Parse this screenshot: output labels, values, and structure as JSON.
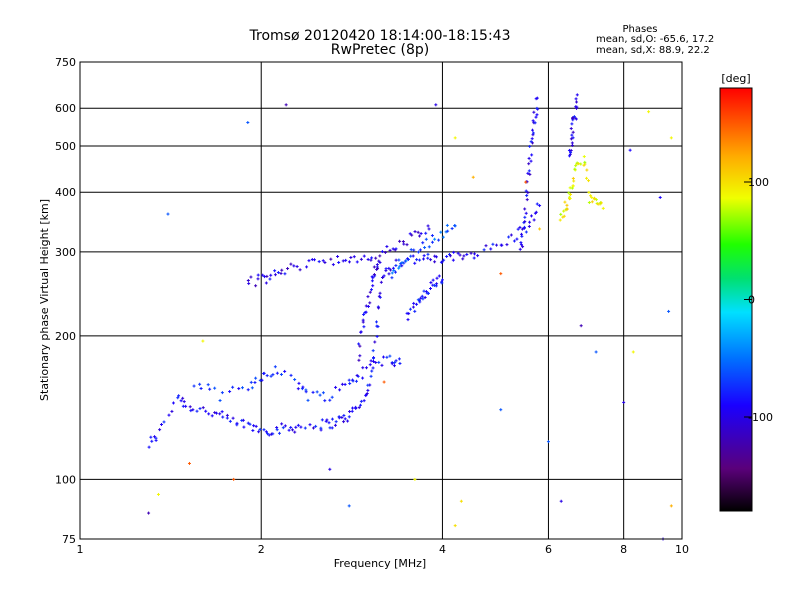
{
  "chart_data": {
    "type": "scatter",
    "title": "Tromsø 20120420 18:14:00-18:15:43",
    "subtitle": "RwPretec (8p)",
    "xlabel": "Frequency [MHz]",
    "ylabel": "Stationary phase Virtual Height [km]",
    "x_scale": "log",
    "y_scale": "log",
    "xlim": [
      1,
      10
    ],
    "ylim": [
      75,
      750
    ],
    "x_ticks": [
      "1",
      "2",
      "4",
      "6",
      "8",
      "10"
    ],
    "y_ticks": [
      "75",
      "100",
      "200",
      "300",
      "400",
      "500",
      "600",
      "750"
    ],
    "grid": true,
    "phase_stats": {
      "heading": "Phases",
      "line1": "mean, sd,O: -65.6, 17.2",
      "line2": "mean, sd,X:  88.9, 22.2"
    },
    "colorbar": {
      "label": "[deg]",
      "ticks": [
        "100",
        "0",
        "-100"
      ],
      "tick_values": [
        100,
        0,
        -100
      ],
      "range": [
        -180,
        180
      ],
      "colormap": "rainbow (black-purple-blue-cyan-green-yellow-red)"
    },
    "traces": [
      {
        "name": "",
        "phase": -90,
        "points": [
          [
            1.3,
            118
          ],
          [
            1.35,
            125
          ],
          [
            1.45,
            150
          ],
          [
            1.5,
            143
          ],
          [
            1.6,
            140
          ],
          [
            1.7,
            136
          ],
          [
            1.8,
            132
          ],
          [
            1.9,
            130
          ],
          [
            2.0,
            127
          ],
          [
            2.1,
            127
          ],
          [
            2.2,
            128
          ],
          [
            2.3,
            129
          ],
          [
            2.5,
            130
          ],
          [
            2.6,
            131
          ],
          [
            2.7,
            133
          ],
          [
            2.8,
            136
          ],
          [
            2.9,
            142
          ],
          [
            3.0,
            152
          ],
          [
            3.05,
            170
          ],
          [
            3.1,
            200
          ],
          [
            3.15,
            240
          ],
          [
            3.2,
            270
          ],
          [
            3.3,
            283
          ],
          [
            3.5,
            288
          ],
          [
            3.7,
            290
          ],
          [
            3.9,
            289
          ],
          [
            4.1,
            290
          ],
          [
            4.3,
            295
          ],
          [
            4.6,
            300
          ],
          [
            5.0,
            310
          ],
          [
            5.3,
            325
          ],
          [
            5.6,
            345
          ],
          [
            5.8,
            375
          ]
        ]
      },
      {
        "name": "",
        "phase": -80,
        "points": [
          [
            1.55,
            160
          ],
          [
            1.7,
            150
          ],
          [
            1.9,
            155
          ],
          [
            2.0,
            165
          ],
          [
            2.1,
            170
          ],
          [
            2.3,
            160
          ],
          [
            2.4,
            150
          ],
          [
            2.6,
            150
          ],
          [
            2.8,
            160
          ],
          [
            2.9,
            165
          ],
          [
            3.1,
            175
          ],
          [
            3.3,
            180
          ],
          [
            3.4,
            175
          ]
        ]
      },
      {
        "name": "",
        "phase": -100,
        "points": [
          [
            2.9,
            180
          ],
          [
            2.95,
            210
          ],
          [
            3.0,
            230
          ],
          [
            3.05,
            255
          ],
          [
            3.1,
            275
          ],
          [
            3.15,
            285
          ]
        ]
      },
      {
        "name": "",
        "phase": -100,
        "points": [
          [
            1.9,
            260
          ],
          [
            2.0,
            262
          ],
          [
            2.1,
            268
          ],
          [
            2.2,
            275
          ],
          [
            2.4,
            285
          ],
          [
            2.6,
            290
          ],
          [
            2.8,
            285
          ],
          [
            3.0,
            290
          ],
          [
            3.2,
            300
          ],
          [
            3.4,
            310
          ],
          [
            3.6,
            325
          ],
          [
            3.8,
            335
          ]
        ]
      },
      {
        "name": "",
        "phase": -95,
        "points": [
          [
            5.4,
            300
          ],
          [
            5.45,
            330
          ],
          [
            5.5,
            370
          ],
          [
            5.55,
            420
          ],
          [
            5.6,
            480
          ],
          [
            5.65,
            530
          ],
          [
            5.7,
            580
          ],
          [
            5.75,
            630
          ]
        ]
      },
      {
        "name": "",
        "phase": -95,
        "points": [
          [
            6.5,
            470
          ],
          [
            6.55,
            510
          ],
          [
            6.6,
            550
          ],
          [
            6.65,
            590
          ],
          [
            6.7,
            640
          ]
        ]
      },
      {
        "name": "",
        "phase": 90,
        "points": [
          [
            6.3,
            350
          ],
          [
            6.4,
            370
          ],
          [
            6.5,
            390
          ],
          [
            6.6,
            420
          ],
          [
            6.7,
            450
          ],
          [
            6.9,
            470
          ],
          [
            7.0,
            390
          ],
          [
            7.2,
            380
          ],
          [
            7.4,
            370
          ]
        ]
      },
      {
        "name": "",
        "phase": -85,
        "points": [
          [
            3.5,
            220
          ],
          [
            3.6,
            230
          ],
          [
            3.7,
            240
          ],
          [
            3.8,
            250
          ],
          [
            3.9,
            260
          ],
          [
            4.0,
            262
          ]
        ]
      },
      {
        "name": "",
        "phase": -60,
        "points": [
          [
            3.3,
            270
          ],
          [
            3.4,
            285
          ],
          [
            3.6,
            300
          ],
          [
            3.8,
            315
          ],
          [
            4.0,
            330
          ],
          [
            4.2,
            340
          ]
        ]
      }
    ],
    "scattered_points": [
      {
        "x": 1.4,
        "y": 360,
        "phase": -60
      },
      {
        "x": 1.6,
        "y": 195,
        "phase": 90
      },
      {
        "x": 1.9,
        "y": 560,
        "phase": -60
      },
      {
        "x": 2.2,
        "y": 610,
        "phase": -120
      },
      {
        "x": 3.9,
        "y": 610,
        "phase": -100
      },
      {
        "x": 4.2,
        "y": 520,
        "phase": 90
      },
      {
        "x": 4.5,
        "y": 430,
        "phase": 120
      },
      {
        "x": 5.5,
        "y": 420,
        "phase": 150
      },
      {
        "x": 5.8,
        "y": 335,
        "phase": 110
      },
      {
        "x": 8.2,
        "y": 490,
        "phase": -90
      },
      {
        "x": 8.8,
        "y": 590,
        "phase": 90
      },
      {
        "x": 9.6,
        "y": 520,
        "phase": 90
      },
      {
        "x": 9.2,
        "y": 390,
        "phase": -90
      },
      {
        "x": 9.5,
        "y": 225,
        "phase": -60
      },
      {
        "x": 8.3,
        "y": 185,
        "phase": 90
      },
      {
        "x": 7.2,
        "y": 185,
        "phase": -60
      },
      {
        "x": 6.8,
        "y": 210,
        "phase": -120
      },
      {
        "x": 5.0,
        "y": 270,
        "phase": 150
      },
      {
        "x": 4.3,
        "y": 90,
        "phase": 100
      },
      {
        "x": 4.2,
        "y": 80,
        "phase": 100
      },
      {
        "x": 6.3,
        "y": 90,
        "phase": -100
      },
      {
        "x": 3.6,
        "y": 100,
        "phase": 90
      },
      {
        "x": 3.2,
        "y": 160,
        "phase": 150
      },
      {
        "x": 2.6,
        "y": 105,
        "phase": -100
      },
      {
        "x": 2.8,
        "y": 88,
        "phase": -60
      },
      {
        "x": 1.8,
        "y": 100,
        "phase": 150
      },
      {
        "x": 1.3,
        "y": 85,
        "phase": -120
      },
      {
        "x": 1.35,
        "y": 93,
        "phase": 90
      },
      {
        "x": 1.52,
        "y": 108,
        "phase": 150
      },
      {
        "x": 5.0,
        "y": 140,
        "phase": -60
      },
      {
        "x": 6.0,
        "y": 120,
        "phase": -60
      },
      {
        "x": 8.0,
        "y": 145,
        "phase": -100
      },
      {
        "x": 9.6,
        "y": 88,
        "phase": 120
      },
      {
        "x": 9.3,
        "y": 75,
        "phase": -100
      }
    ]
  }
}
